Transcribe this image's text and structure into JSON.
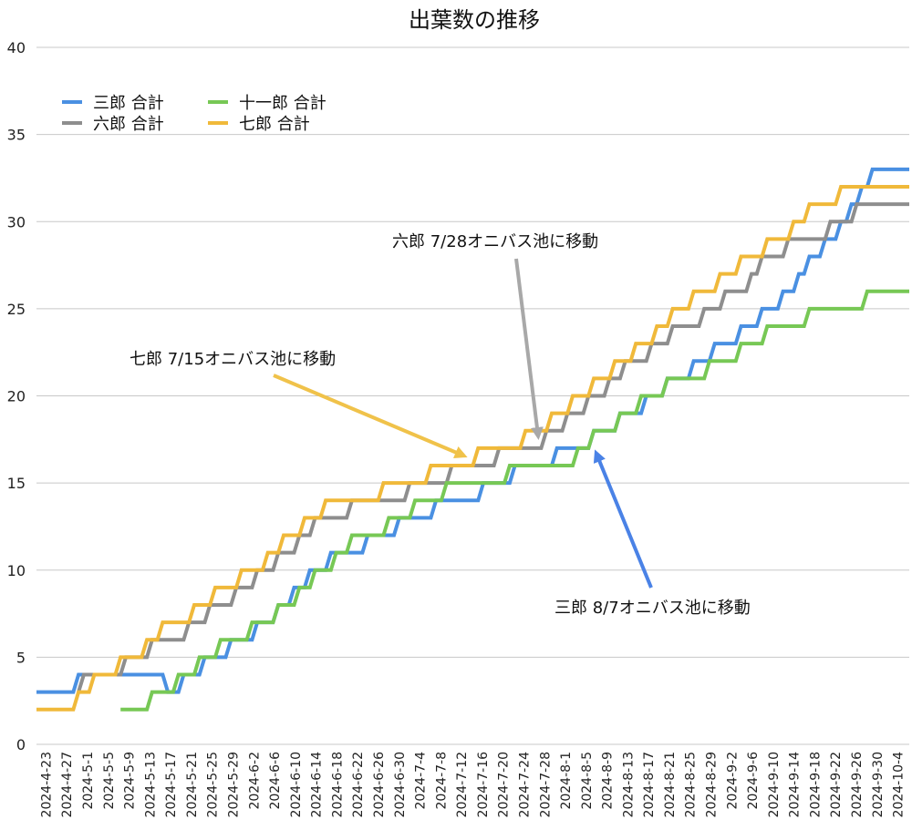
{
  "chart_data": {
    "type": "line",
    "title": "出葉数の推移",
    "xlabel": "",
    "ylabel": "",
    "ylim": [
      0,
      40
    ],
    "yticks": [
      0,
      5,
      10,
      15,
      20,
      25,
      30,
      35,
      40
    ],
    "grid": true,
    "legend_position": "top-left",
    "x_start": "2024-04-23",
    "x_end": "2024-10-06",
    "xtick_labels": [
      "2024-4-23",
      "2024-4-27",
      "2024-5-1",
      "2024-5-5",
      "2024-5-9",
      "2024-5-13",
      "2024-5-17",
      "2024-5-21",
      "2024-5-25",
      "2024-5-29",
      "2024-6-2",
      "2024-6-6",
      "2024-6-10",
      "2024-6-14",
      "2024-6-18",
      "2024-6-22",
      "2024-6-26",
      "2024-6-30",
      "2024-7-4",
      "2024-7-8",
      "2024-7-12",
      "2024-7-16",
      "2024-7-20",
      "2024-7-24",
      "2024-7-28",
      "2024-8-1",
      "2024-8-5",
      "2024-8-9",
      "2024-8-13",
      "2024-8-17",
      "2024-8-21",
      "2024-8-25",
      "2024-8-29",
      "2024-9-2",
      "2024-9-6",
      "2024-9-10",
      "2024-9-14",
      "2024-9-18",
      "2024-9-22",
      "2024-9-26",
      "2024-9-30",
      "2024-10-4"
    ],
    "series": [
      {
        "name": "三郎 合計",
        "color": "#4a90e2",
        "points": [
          [
            "2024-04-23",
            3
          ],
          [
            "2024-04-30",
            3
          ],
          [
            "2024-05-01",
            4
          ],
          [
            "2024-05-17",
            4
          ],
          [
            "2024-05-18",
            3
          ],
          [
            "2024-05-20",
            3
          ],
          [
            "2024-05-21",
            4
          ],
          [
            "2024-05-24",
            4
          ],
          [
            "2024-05-25",
            5
          ],
          [
            "2024-05-29",
            5
          ],
          [
            "2024-05-30",
            6
          ],
          [
            "2024-06-03",
            6
          ],
          [
            "2024-06-04",
            7
          ],
          [
            "2024-06-07",
            7
          ],
          [
            "2024-06-08",
            8
          ],
          [
            "2024-06-10",
            8
          ],
          [
            "2024-06-11",
            9
          ],
          [
            "2024-06-13",
            9
          ],
          [
            "2024-06-14",
            10
          ],
          [
            "2024-06-17",
            10
          ],
          [
            "2024-06-18",
            11
          ],
          [
            "2024-06-24",
            11
          ],
          [
            "2024-06-25",
            12
          ],
          [
            "2024-06-30",
            12
          ],
          [
            "2024-07-01",
            13
          ],
          [
            "2024-07-07",
            13
          ],
          [
            "2024-07-08",
            14
          ],
          [
            "2024-07-16",
            14
          ],
          [
            "2024-07-17",
            15
          ],
          [
            "2024-07-22",
            15
          ],
          [
            "2024-07-23",
            16
          ],
          [
            "2024-07-30",
            16
          ],
          [
            "2024-07-31",
            17
          ],
          [
            "2024-08-06",
            17
          ],
          [
            "2024-08-07",
            18
          ],
          [
            "2024-08-11",
            18
          ],
          [
            "2024-08-12",
            19
          ],
          [
            "2024-08-16",
            19
          ],
          [
            "2024-08-17",
            20
          ],
          [
            "2024-08-20",
            20
          ],
          [
            "2024-08-21",
            21
          ],
          [
            "2024-08-25",
            21
          ],
          [
            "2024-08-26",
            22
          ],
          [
            "2024-08-29",
            22
          ],
          [
            "2024-08-30",
            23
          ],
          [
            "2024-09-03",
            23
          ],
          [
            "2024-09-04",
            24
          ],
          [
            "2024-09-07",
            24
          ],
          [
            "2024-09-08",
            25
          ],
          [
            "2024-09-11",
            25
          ],
          [
            "2024-09-12",
            26
          ],
          [
            "2024-09-14",
            26
          ],
          [
            "2024-09-15",
            27
          ],
          [
            "2024-09-16",
            27
          ],
          [
            "2024-09-17",
            28
          ],
          [
            "2024-09-19",
            28
          ],
          [
            "2024-09-20",
            29
          ],
          [
            "2024-09-22",
            29
          ],
          [
            "2024-09-23",
            30
          ],
          [
            "2024-09-24",
            30
          ],
          [
            "2024-09-25",
            31
          ],
          [
            "2024-09-26",
            31
          ],
          [
            "2024-09-27",
            32
          ],
          [
            "2024-09-28",
            32
          ],
          [
            "2024-09-29",
            33
          ],
          [
            "2024-10-06",
            33
          ]
        ]
      },
      {
        "name": "六郎 合計",
        "color": "#8e8e8e",
        "points": [
          [
            "2024-05-01",
            3
          ],
          [
            "2024-05-02",
            4
          ],
          [
            "2024-05-09",
            4
          ],
          [
            "2024-05-10",
            5
          ],
          [
            "2024-05-14",
            5
          ],
          [
            "2024-05-15",
            6
          ],
          [
            "2024-05-21",
            6
          ],
          [
            "2024-05-22",
            7
          ],
          [
            "2024-05-25",
            7
          ],
          [
            "2024-05-26",
            8
          ],
          [
            "2024-05-30",
            8
          ],
          [
            "2024-05-31",
            9
          ],
          [
            "2024-06-03",
            9
          ],
          [
            "2024-06-04",
            10
          ],
          [
            "2024-06-07",
            10
          ],
          [
            "2024-06-08",
            11
          ],
          [
            "2024-06-11",
            11
          ],
          [
            "2024-06-12",
            12
          ],
          [
            "2024-06-14",
            12
          ],
          [
            "2024-06-15",
            13
          ],
          [
            "2024-06-21",
            13
          ],
          [
            "2024-06-22",
            14
          ],
          [
            "2024-07-02",
            14
          ],
          [
            "2024-07-03",
            15
          ],
          [
            "2024-07-10",
            15
          ],
          [
            "2024-07-11",
            16
          ],
          [
            "2024-07-19",
            16
          ],
          [
            "2024-07-20",
            17
          ],
          [
            "2024-07-28",
            17
          ],
          [
            "2024-07-29",
            18
          ],
          [
            "2024-08-01",
            18
          ],
          [
            "2024-08-02",
            19
          ],
          [
            "2024-08-05",
            19
          ],
          [
            "2024-08-06",
            20
          ],
          [
            "2024-08-09",
            20
          ],
          [
            "2024-08-10",
            21
          ],
          [
            "2024-08-12",
            21
          ],
          [
            "2024-08-13",
            22
          ],
          [
            "2024-08-17",
            22
          ],
          [
            "2024-08-18",
            23
          ],
          [
            "2024-08-21",
            23
          ],
          [
            "2024-08-22",
            24
          ],
          [
            "2024-08-27",
            24
          ],
          [
            "2024-08-28",
            25
          ],
          [
            "2024-08-31",
            25
          ],
          [
            "2024-09-01",
            26
          ],
          [
            "2024-09-05",
            26
          ],
          [
            "2024-09-06",
            27
          ],
          [
            "2024-09-07",
            27
          ],
          [
            "2024-09-08",
            28
          ],
          [
            "2024-09-12",
            28
          ],
          [
            "2024-09-13",
            29
          ],
          [
            "2024-09-20",
            29
          ],
          [
            "2024-09-21",
            30
          ],
          [
            "2024-09-25",
            30
          ],
          [
            "2024-09-26",
            31
          ],
          [
            "2024-10-06",
            31
          ]
        ]
      },
      {
        "name": "十一郎 合計",
        "color": "#77c855",
        "points": [
          [
            "2024-05-09",
            2
          ],
          [
            "2024-05-14",
            2
          ],
          [
            "2024-05-15",
            3
          ],
          [
            "2024-05-19",
            3
          ],
          [
            "2024-05-20",
            4
          ],
          [
            "2024-05-23",
            4
          ],
          [
            "2024-05-24",
            5
          ],
          [
            "2024-05-27",
            5
          ],
          [
            "2024-05-28",
            6
          ],
          [
            "2024-06-02",
            6
          ],
          [
            "2024-06-03",
            7
          ],
          [
            "2024-06-07",
            7
          ],
          [
            "2024-06-08",
            8
          ],
          [
            "2024-06-11",
            8
          ],
          [
            "2024-06-12",
            9
          ],
          [
            "2024-06-14",
            9
          ],
          [
            "2024-06-15",
            10
          ],
          [
            "2024-06-18",
            10
          ],
          [
            "2024-06-19",
            11
          ],
          [
            "2024-06-21",
            11
          ],
          [
            "2024-06-22",
            12
          ],
          [
            "2024-06-28",
            12
          ],
          [
            "2024-06-29",
            13
          ],
          [
            "2024-07-03",
            13
          ],
          [
            "2024-07-04",
            14
          ],
          [
            "2024-07-09",
            14
          ],
          [
            "2024-07-10",
            15
          ],
          [
            "2024-07-21",
            15
          ],
          [
            "2024-07-22",
            16
          ],
          [
            "2024-08-03",
            16
          ],
          [
            "2024-08-04",
            17
          ],
          [
            "2024-08-06",
            17
          ],
          [
            "2024-08-07",
            18
          ],
          [
            "2024-08-11",
            18
          ],
          [
            "2024-08-12",
            19
          ],
          [
            "2024-08-15",
            19
          ],
          [
            "2024-08-16",
            20
          ],
          [
            "2024-08-20",
            20
          ],
          [
            "2024-08-21",
            21
          ],
          [
            "2024-08-28",
            21
          ],
          [
            "2024-08-29",
            22
          ],
          [
            "2024-09-03",
            22
          ],
          [
            "2024-09-04",
            23
          ],
          [
            "2024-09-08",
            23
          ],
          [
            "2024-09-09",
            24
          ],
          [
            "2024-09-16",
            24
          ],
          [
            "2024-09-17",
            25
          ],
          [
            "2024-09-27",
            25
          ],
          [
            "2024-09-28",
            26
          ],
          [
            "2024-10-06",
            26
          ]
        ]
      },
      {
        "name": "七郎 合計",
        "color": "#f0b93a",
        "points": [
          [
            "2024-04-23",
            2
          ],
          [
            "2024-04-30",
            2
          ],
          [
            "2024-05-01",
            3
          ],
          [
            "2024-05-03",
            3
          ],
          [
            "2024-05-04",
            4
          ],
          [
            "2024-05-08",
            4
          ],
          [
            "2024-05-09",
            5
          ],
          [
            "2024-05-13",
            5
          ],
          [
            "2024-05-14",
            6
          ],
          [
            "2024-05-16",
            6
          ],
          [
            "2024-05-17",
            7
          ],
          [
            "2024-05-22",
            7
          ],
          [
            "2024-05-23",
            8
          ],
          [
            "2024-05-26",
            8
          ],
          [
            "2024-05-27",
            9
          ],
          [
            "2024-05-31",
            9
          ],
          [
            "2024-06-01",
            10
          ],
          [
            "2024-06-05",
            10
          ],
          [
            "2024-06-06",
            11
          ],
          [
            "2024-06-08",
            11
          ],
          [
            "2024-06-09",
            12
          ],
          [
            "2024-06-12",
            12
          ],
          [
            "2024-06-13",
            13
          ],
          [
            "2024-06-16",
            13
          ],
          [
            "2024-06-17",
            14
          ],
          [
            "2024-06-27",
            14
          ],
          [
            "2024-06-28",
            15
          ],
          [
            "2024-07-06",
            15
          ],
          [
            "2024-07-07",
            16
          ],
          [
            "2024-07-15",
            16
          ],
          [
            "2024-07-16",
            17
          ],
          [
            "2024-07-24",
            17
          ],
          [
            "2024-07-25",
            18
          ],
          [
            "2024-07-29",
            18
          ],
          [
            "2024-07-30",
            19
          ],
          [
            "2024-08-02",
            19
          ],
          [
            "2024-08-03",
            20
          ],
          [
            "2024-08-06",
            20
          ],
          [
            "2024-08-07",
            21
          ],
          [
            "2024-08-10",
            21
          ],
          [
            "2024-08-11",
            22
          ],
          [
            "2024-08-14",
            22
          ],
          [
            "2024-08-15",
            23
          ],
          [
            "2024-08-18",
            23
          ],
          [
            "2024-08-19",
            24
          ],
          [
            "2024-08-21",
            24
          ],
          [
            "2024-08-22",
            25
          ],
          [
            "2024-08-25",
            25
          ],
          [
            "2024-08-26",
            26
          ],
          [
            "2024-08-30",
            26
          ],
          [
            "2024-08-31",
            27
          ],
          [
            "2024-09-03",
            27
          ],
          [
            "2024-09-04",
            28
          ],
          [
            "2024-09-08",
            28
          ],
          [
            "2024-09-09",
            29
          ],
          [
            "2024-09-13",
            29
          ],
          [
            "2024-09-14",
            30
          ],
          [
            "2024-09-16",
            30
          ],
          [
            "2024-09-17",
            31
          ],
          [
            "2024-09-22",
            31
          ],
          [
            "2024-09-23",
            32
          ],
          [
            "2024-10-06",
            32
          ]
        ]
      }
    ],
    "annotations": [
      {
        "text": "六郎 7/28オニバス池に移動",
        "color": "#a8a8a8",
        "target": [
          "2024-07-28",
          17
        ]
      },
      {
        "text": "七郎 7/15オニバス池に移動",
        "color": "#f0c24a",
        "target": [
          "2024-07-15",
          16
        ]
      },
      {
        "text": "三郎 8/7オニバス池に移動",
        "color": "#4a82e6",
        "target": [
          "2024-08-07",
          18
        ]
      }
    ]
  }
}
